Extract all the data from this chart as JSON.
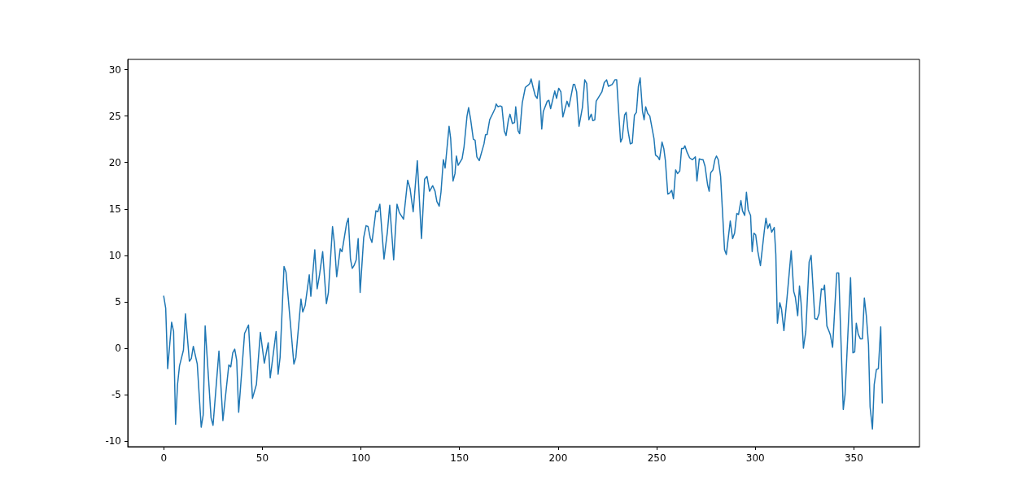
{
  "chart_data": {
    "type": "line",
    "color": "#1f77b4",
    "marker": "none",
    "line_style": "solid",
    "grid": false,
    "xlim": [
      -18.25,
      383.25
    ],
    "xticks": [
      0,
      50,
      100,
      150,
      200,
      250,
      300,
      350
    ],
    "ylim": [
      -10.6,
      31.1
    ],
    "yticks": [
      -10,
      -5,
      0,
      5,
      10,
      15,
      20,
      25,
      30
    ],
    "x": [
      0,
      1,
      2,
      4,
      5,
      6,
      7,
      8,
      10,
      11,
      13,
      14,
      15,
      17,
      19,
      20,
      21,
      24,
      25,
      28,
      30,
      31,
      33,
      34,
      35,
      36,
      37,
      38,
      41,
      43,
      45,
      47,
      49,
      51,
      53,
      54,
      57,
      58,
      59,
      61,
      62,
      66,
      67,
      69.6,
      70.5,
      71.7,
      73.8,
      74.6,
      76.6,
      77.8,
      79,
      80.6,
      82.5,
      83.5,
      85.6,
      86.6,
      87.7,
      89.5,
      90.4,
      92.7,
      93.6,
      94.7,
      95.6,
      96.5,
      97.6,
      98.6,
      99.6,
      101.4,
      102.6,
      103.6,
      104.7,
      105.6,
      107.6,
      108.6,
      109.6,
      111.7,
      113.4,
      114.6,
      116.6,
      118.3,
      119.5,
      121.6,
      123.7,
      124.9,
      126.5,
      128.6,
      130.7,
      132.3,
      133.5,
      134.8,
      136.4,
      137.6,
      138.5,
      139.7,
      140.6,
      141.8,
      142.7,
      144.7,
      145.5,
      146.7,
      147.7,
      148.4,
      149.3,
      151.3,
      152.3,
      153.8,
      154.6,
      155.6,
      157,
      157.9,
      158.8,
      160,
      162.4,
      163.2,
      164,
      165.3,
      166.9,
      168,
      168.6,
      169.5,
      170.6,
      171.5,
      172.7,
      173.6,
      174.8,
      175.6,
      176.8,
      177.9,
      178.5,
      179.7,
      180.5,
      181.8,
      183.4,
      184.7,
      185.6,
      186.3,
      187.3,
      188.4,
      189.4,
      190.4,
      191.7,
      192.5,
      194.5,
      195.3,
      196.2,
      198.3,
      199.2,
      200.3,
      201.4,
      202.4,
      204.5,
      205.5,
      207.7,
      208.4,
      209.4,
      210.6,
      212.3,
      213.5,
      214.5,
      215.6,
      216.8,
      217.6,
      218.6,
      219.3,
      220.2,
      222.2,
      223.4,
      224.6,
      225.5,
      226.4,
      227.4,
      228.8,
      229.7,
      230.8,
      231.7,
      232.5,
      233.7,
      234.5,
      235.4,
      236.6,
      237.6,
      238.7,
      239.7,
      240.7,
      241.6,
      242.8,
      243.6,
      244.4,
      245.4,
      246.5,
      248.6,
      249.4,
      250.6,
      251.4,
      252.7,
      253.6,
      254.4,
      255.6,
      256.5,
      257.6,
      258.5,
      259.6,
      260.6,
      261.7,
      262.6,
      263.6,
      264.3,
      265.4,
      266.7,
      268.1,
      269.6,
      270.4,
      271.6,
      272.6,
      273.5,
      274.5,
      275.8,
      276.6,
      277.4,
      278.5,
      279.5,
      280.3,
      281.2,
      282.4,
      284.4,
      285.3,
      287.3,
      288.5,
      289.5,
      290.6,
      291.5,
      292.7,
      293.5,
      294.6,
      295.5,
      296.4,
      297.6,
      298.4,
      299.3,
      300.2,
      301.3,
      302.6,
      304.6,
      305.4,
      306.3,
      307.3,
      308.3,
      309.6,
      310.4,
      311.2,
      312.4,
      313.3,
      314.5,
      316.2,
      317.4,
      318.2,
      319.5,
      320.3,
      321.5,
      322.4,
      323.2,
      324.4,
      325.6,
      327.3,
      328.3,
      330.2,
      331.3,
      332.3,
      333.5,
      334.5,
      335.1,
      336.3,
      337.6,
      338.1,
      339.2,
      341.3,
      342.3,
      344.6,
      345.5,
      348.3,
      349.5,
      350.4,
      351.2,
      352.2,
      353.3,
      354.3,
      355.3,
      356.3,
      357.4,
      358.2,
      359.4,
      360.3,
      361.4,
      362.4,
      363.6,
      364.4
    ],
    "values": [
      5.6,
      4.3,
      -2.2,
      2.8,
      1.8,
      -8.2,
      -3.9,
      -1.9,
      -0.2,
      3.7,
      -1.4,
      -1.1,
      0.2,
      -1.7,
      -8.5,
      -7.2,
      2.4,
      -7.5,
      -8.3,
      -0.3,
      -7.8,
      -5.8,
      -1.8,
      -2.0,
      -0.5,
      -0.1,
      -1.3,
      -6.9,
      1.6,
      2.5,
      -5.4,
      -3.9,
      1.7,
      -1.6,
      0.6,
      -3.2,
      1.8,
      -2.8,
      -1.0,
      8.8,
      8.2,
      -1.7,
      -1.0,
      5.3,
      3.9,
      4.6,
      7.9,
      5.6,
      10.6,
      6.4,
      7.9,
      10.4,
      4.8,
      6.0,
      13.1,
      11.2,
      7.7,
      10.7,
      10.4,
      13.4,
      14.0,
      9.6,
      8.6,
      8.9,
      9.5,
      11.8,
      6.0,
      11.9,
      13.2,
      13.1,
      11.9,
      11.4,
      14.8,
      14.7,
      15.5,
      9.6,
      12.5,
      15.4,
      9.5,
      15.5,
      14.6,
      13.9,
      18.1,
      17.2,
      14.7,
      20.2,
      11.8,
      18.2,
      18.5,
      16.9,
      17.5,
      16.9,
      15.8,
      15.3,
      16.8,
      20.3,
      19.4,
      23.9,
      22.6,
      18.0,
      18.8,
      20.7,
      19.7,
      20.4,
      21.7,
      25.0,
      25.9,
      24.7,
      22.5,
      22.4,
      20.6,
      20.2,
      22.0,
      23.0,
      23.0,
      24.6,
      25.3,
      25.8,
      26.3,
      26.0,
      26.1,
      26.0,
      23.4,
      22.9,
      24.6,
      25.2,
      24.2,
      24.3,
      26.0,
      23.4,
      23.1,
      26.4,
      28.1,
      28.3,
      28.5,
      29.0,
      28.1,
      27.2,
      26.9,
      28.8,
      23.6,
      25.5,
      26.6,
      26.7,
      25.8,
      27.7,
      26.9,
      28.0,
      27.6,
      24.9,
      26.6,
      26.0,
      28.4,
      28.4,
      27.6,
      23.9,
      25.9,
      28.9,
      28.5,
      24.6,
      25.2,
      24.5,
      24.6,
      26.6,
      26.9,
      27.6,
      28.6,
      28.9,
      28.2,
      28.3,
      28.4,
      28.9,
      28.9,
      25.1,
      22.2,
      22.6,
      25.1,
      25.4,
      23.5,
      22.0,
      22.1,
      25.1,
      25.4,
      28.2,
      29.1,
      25.5,
      24.6,
      26.0,
      25.3,
      25.0,
      22.6,
      20.8,
      20.6,
      20.3,
      22.2,
      21.5,
      20.2,
      16.6,
      16.7,
      17.0,
      16.1,
      19.2,
      18.8,
      19.1,
      21.5,
      21.5,
      21.8,
      21.1,
      20.5,
      20.3,
      20.6,
      18.0,
      20.4,
      20.3,
      20.3,
      19.6,
      17.6,
      16.9,
      18.9,
      19.2,
      20.3,
      20.7,
      20.3,
      18.5,
      10.6,
      10.1,
      13.7,
      11.8,
      12.4,
      14.5,
      14.4,
      15.9,
      14.8,
      14.3,
      16.8,
      14.9,
      14.3,
      10.4,
      12.4,
      12.2,
      10.4,
      8.9,
      12.7,
      14.0,
      12.9,
      13.4,
      12.5,
      13.0,
      10.1,
      2.7,
      4.9,
      4.2,
      1.9,
      5.7,
      8.6,
      10.5,
      6.1,
      5.5,
      3.5,
      6.7,
      4.9,
      0.0,
      1.8,
      9.3,
      10.0,
      3.2,
      3.1,
      3.7,
      6.4,
      6.3,
      6.8,
      2.4,
      1.7,
      1.4,
      0.1,
      8.1,
      8.1,
      -6.6,
      -5.0,
      7.6,
      -0.5,
      -0.4,
      2.7,
      1.5,
      1.0,
      1.0,
      5.4,
      3.5,
      0.4,
      -6.3,
      -8.7,
      -3.9,
      -2.3,
      -2.2,
      2.3,
      -5.9
    ]
  }
}
